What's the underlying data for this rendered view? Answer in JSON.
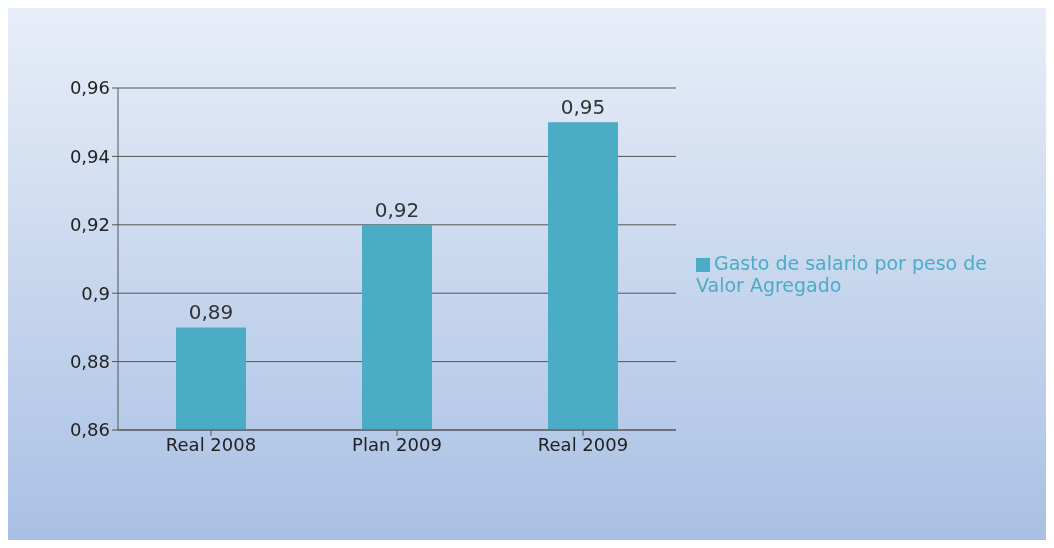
{
  "chart_data": {
    "type": "bar",
    "categories": [
      "Real 2008",
      "Plan 2009",
      "Real 2009"
    ],
    "series": [
      {
        "name": "Gasto de salario por peso de Valor Agregado",
        "color": "#4bacc6",
        "values": [
          0.89,
          0.92,
          0.95
        ],
        "value_labels": [
          "0,89",
          "0,92",
          "0,95"
        ]
      }
    ],
    "ylim": [
      0.86,
      0.96
    ],
    "yticks": [
      {
        "value": 0.86,
        "label": "0,86"
      },
      {
        "value": 0.88,
        "label": "0,88"
      },
      {
        "value": 0.9,
        "label": "0,9"
      },
      {
        "value": 0.92,
        "label": "0,92"
      },
      {
        "value": 0.94,
        "label": "0,94"
      },
      {
        "value": 0.96,
        "label": "0,96"
      }
    ],
    "grid": "y",
    "legend": "right"
  }
}
